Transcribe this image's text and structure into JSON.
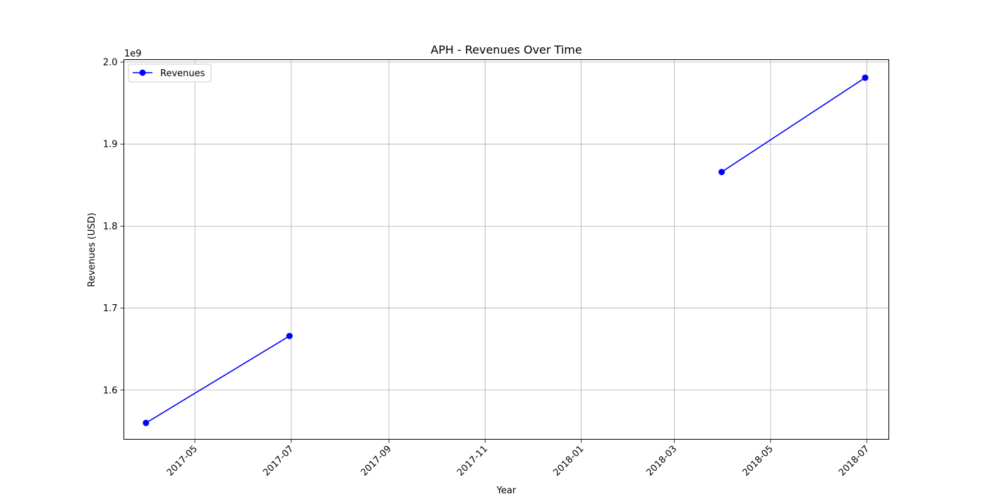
{
  "chart_data": {
    "type": "line",
    "title": "APH - Revenues Over Time",
    "xlabel": "Year",
    "ylabel": "Revenues (USD)",
    "y_offset_label": "1e9",
    "y_scale_factor": 1000000000,
    "xlim": [
      "2017-03-17",
      "2018-07-15"
    ],
    "ylim": [
      1540000000,
      2003000000
    ],
    "x_ticks": [
      "2017-05-01",
      "2017-07-01",
      "2017-09-01",
      "2017-11-01",
      "2018-01-01",
      "2018-03-01",
      "2018-05-01",
      "2018-07-01"
    ],
    "x_tick_labels": [
      "2017-05",
      "2017-07",
      "2017-09",
      "2017-11",
      "2018-01",
      "2018-03",
      "2018-05",
      "2018-07"
    ],
    "y_ticks": [
      1600000000,
      1700000000,
      1800000000,
      1900000000,
      2000000000
    ],
    "y_tick_labels": [
      "1.6",
      "1.7",
      "1.8",
      "1.9",
      "2.0"
    ],
    "grid": true,
    "legend": "top-left",
    "series": [
      {
        "name": "Revenues",
        "color": "#0000ff",
        "marker": "circle",
        "segments": [
          [
            {
              "x": "2017-03-31",
              "y": 1560000000
            },
            {
              "x": "2017-06-30",
              "y": 1666000000
            }
          ],
          [
            {
              "x": "2018-03-31",
              "y": 1866000000
            },
            {
              "x": "2018-06-30",
              "y": 1981000000
            }
          ]
        ]
      }
    ]
  }
}
